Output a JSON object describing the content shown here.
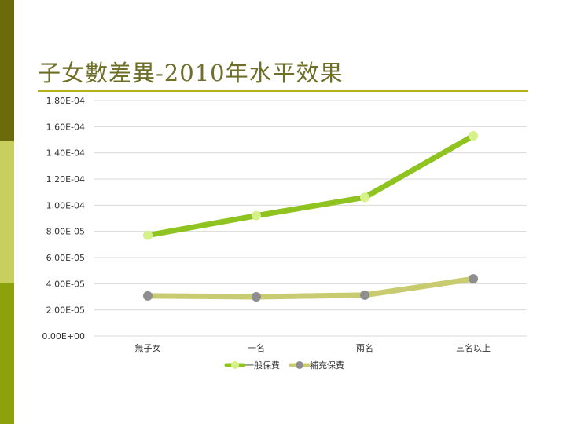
{
  "slide": {
    "title": "子女數差異-2010年水平效果",
    "accent_colors": [
      "#6b6b0c",
      "#c9cf5e",
      "#8ca20a",
      "#b8b21a"
    ]
  },
  "chart_data": {
    "type": "line",
    "categories": [
      "無子女",
      "一名",
      "兩名",
      "三名以上"
    ],
    "ylim": [
      0,
      0.00018
    ],
    "y_ticks": [
      {
        "value": 0.00018,
        "label": "1.80E-04"
      },
      {
        "value": 0.00016,
        "label": "1.60E-04"
      },
      {
        "value": 0.00014,
        "label": "1.40E-04"
      },
      {
        "value": 0.00012,
        "label": "1.20E-04"
      },
      {
        "value": 0.0001,
        "label": "1.00E-04"
      },
      {
        "value": 8e-05,
        "label": "8.00E-05"
      },
      {
        "value": 6e-05,
        "label": "6.00E-05"
      },
      {
        "value": 4e-05,
        "label": "4.00E-05"
      },
      {
        "value": 2e-05,
        "label": "2.00E-05"
      },
      {
        "value": 0,
        "label": "0.00E+00"
      }
    ],
    "grid": true,
    "legend_position": "bottom",
    "series": [
      {
        "name": "一般保費",
        "values": [
          7.7e-05,
          9.2e-05,
          0.000106,
          0.000153
        ],
        "line_color": "#8fc31f",
        "marker_color": "#d6f08a"
      },
      {
        "name": "補充保費",
        "values": [
          3.07e-05,
          3e-05,
          3.13e-05,
          4.37e-05
        ],
        "line_color": "#c9cb70",
        "marker_color": "#8e8e8e"
      }
    ]
  }
}
